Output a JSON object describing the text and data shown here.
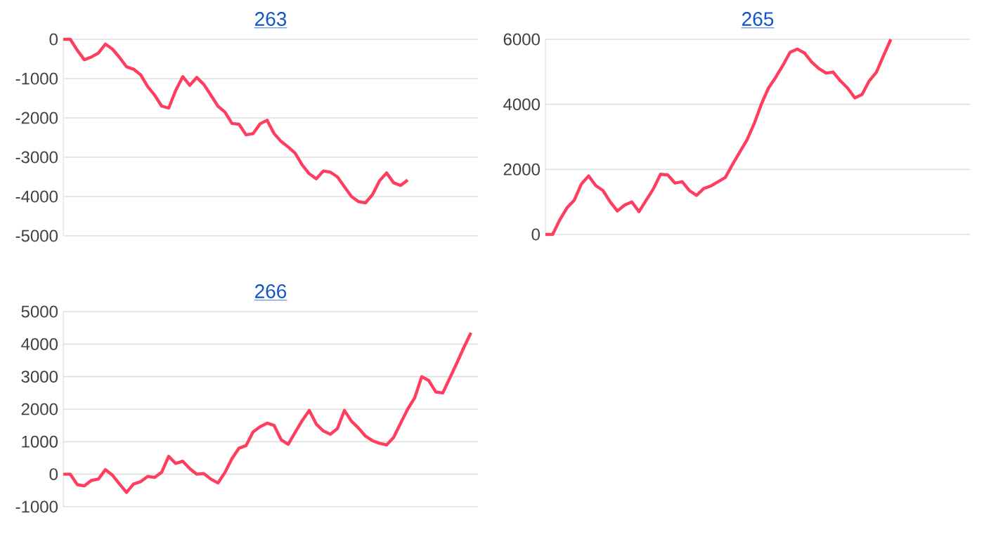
{
  "chart_data": [
    {
      "type": "line",
      "title": "263",
      "color": "#ff3d5f",
      "grid": "y",
      "ylim": [
        -5000,
        0
      ],
      "yticks": [
        -5000,
        -4000,
        -3000,
        -2000,
        -1000,
        0
      ],
      "categories": [
        null,
        null,
        null,
        null,
        null,
        null,
        null,
        null,
        null,
        null,
        null,
        null,
        null,
        null,
        null,
        null,
        null,
        null,
        null,
        null,
        null,
        null,
        null,
        null,
        null,
        null,
        null,
        null,
        null,
        null,
        null,
        null,
        null,
        null,
        null,
        null,
        null,
        null,
        null,
        null,
        null,
        null,
        null,
        null,
        null,
        null,
        null,
        null,
        null,
        null,
        null,
        null,
        null,
        null,
        null,
        null,
        null,
        null,
        null,
        null
      ],
      "values": [
        0,
        0,
        -280,
        -520,
        -450,
        -350,
        -120,
        -250,
        -460,
        -700,
        -760,
        -900,
        -1200,
        -1420,
        -1700,
        -1750,
        -1300,
        -950,
        -1170,
        -970,
        -1150,
        -1420,
        -1700,
        -1850,
        -2140,
        -2160,
        -2430,
        -2400,
        -2150,
        -2060,
        -2400,
        -2600,
        -2740,
        -2900,
        -3200,
        -3420,
        -3550,
        -3350,
        -3380,
        -3500,
        -3750,
        -4000,
        -4130,
        -4160,
        -3950,
        -3600,
        -3400,
        -3650,
        -3720,
        -3580,
        null,
        null,
        null,
        null,
        null,
        null,
        null,
        null,
        null,
        null
      ]
    },
    {
      "type": "line",
      "title": "265",
      "color": "#ff3d5f",
      "grid": "y",
      "ylim": [
        0,
        6000
      ],
      "yticks": [
        0,
        2000,
        4000,
        6000
      ],
      "categories": [
        null,
        null,
        null,
        null,
        null,
        null,
        null,
        null,
        null,
        null,
        null,
        null,
        null,
        null,
        null,
        null,
        null,
        null,
        null,
        null,
        null,
        null,
        null,
        null,
        null,
        null,
        null,
        null,
        null,
        null,
        null,
        null,
        null,
        null,
        null,
        null,
        null,
        null,
        null,
        null,
        null,
        null,
        null,
        null,
        null,
        null,
        null,
        null,
        null,
        null,
        null,
        null,
        null,
        null,
        null,
        null,
        null,
        null,
        null,
        null
      ],
      "values": [
        0,
        0,
        450,
        820,
        1050,
        1550,
        1800,
        1500,
        1350,
        1000,
        720,
        900,
        1000,
        700,
        1050,
        1400,
        1850,
        1830,
        1580,
        1620,
        1350,
        1200,
        1410,
        1490,
        1620,
        1750,
        2150,
        2530,
        2900,
        3400,
        4000,
        4500,
        4830,
        5200,
        5600,
        5700,
        5580,
        5300,
        5100,
        4960,
        4990,
        4720,
        4500,
        4200,
        4300,
        4720,
        4990,
        5500,
        6000,
        null,
        null,
        null,
        null,
        null,
        null,
        null,
        null,
        null,
        null,
        null
      ]
    },
    {
      "type": "line",
      "title": "266",
      "color": "#ff3d5f",
      "grid": "y",
      "ylim": [
        -1000,
        5000
      ],
      "yticks": [
        -1000,
        0,
        1000,
        2000,
        3000,
        4000,
        5000
      ],
      "categories": [
        null,
        null,
        null,
        null,
        null,
        null,
        null,
        null,
        null,
        null,
        null,
        null,
        null,
        null,
        null,
        null,
        null,
        null,
        null,
        null,
        null,
        null,
        null,
        null,
        null,
        null,
        null,
        null,
        null,
        null,
        null,
        null,
        null,
        null,
        null,
        null,
        null,
        null,
        null,
        null,
        null,
        null,
        null,
        null,
        null,
        null,
        null,
        null,
        null,
        null,
        null,
        null,
        null,
        null,
        null,
        null,
        null,
        null,
        null,
        null
      ],
      "values": [
        0,
        0,
        -320,
        -360,
        -190,
        -150,
        140,
        -30,
        -300,
        -560,
        -300,
        -230,
        -70,
        -100,
        60,
        550,
        330,
        400,
        170,
        0,
        20,
        -150,
        -270,
        50,
        480,
        800,
        880,
        1300,
        1460,
        1570,
        1500,
        1060,
        920,
        1290,
        1650,
        1960,
        1540,
        1330,
        1230,
        1400,
        1960,
        1630,
        1420,
        1170,
        1030,
        950,
        900,
        1130,
        1570,
        2000,
        2350,
        3000,
        2880,
        2530,
        2500,
        2960,
        3420,
        3900,
        4350,
        null
      ]
    }
  ]
}
